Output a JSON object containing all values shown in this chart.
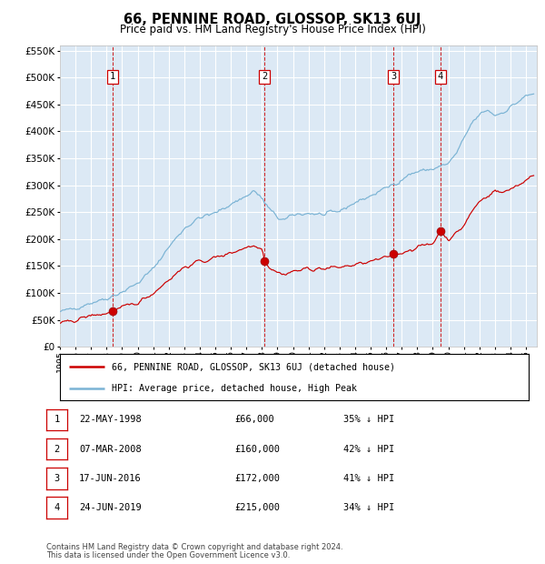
{
  "title": "66, PENNINE ROAD, GLOSSOP, SK13 6UJ",
  "subtitle": "Price paid vs. HM Land Registry's House Price Index (HPI)",
  "legend_line1": "66, PENNINE ROAD, GLOSSOP, SK13 6UJ (detached house)",
  "legend_line2": "HPI: Average price, detached house, High Peak",
  "footer_line1": "Contains HM Land Registry data © Crown copyright and database right 2024.",
  "footer_line2": "This data is licensed under the Open Government Licence v3.0.",
  "hpi_color": "#7ab3d4",
  "price_color": "#cc0000",
  "bg_color": "#dce9f5",
  "sale_points": [
    {
      "label": "1",
      "date": "22-MAY-1998",
      "price": 66000,
      "pct": "35%",
      "year_x": 1998.38
    },
    {
      "label": "2",
      "date": "07-MAR-2008",
      "price": 160000,
      "pct": "42%",
      "year_x": 2008.18
    },
    {
      "label": "3",
      "date": "17-JUN-2016",
      "price": 172000,
      "pct": "41%",
      "year_x": 2016.46
    },
    {
      "label": "4",
      "date": "24-JUN-2019",
      "price": 215000,
      "pct": "34%",
      "year_x": 2019.48
    }
  ],
  "ylim": [
    0,
    560000
  ],
  "yticks": [
    0,
    50000,
    100000,
    150000,
    200000,
    250000,
    300000,
    350000,
    400000,
    450000,
    500000,
    550000
  ],
  "xlim_start": 1995.0,
  "xlim_end": 2025.7,
  "hpi_anchors": [
    [
      1995.0,
      65000
    ],
    [
      1996.0,
      72000
    ],
    [
      1997.0,
      82000
    ],
    [
      1998.0,
      90000
    ],
    [
      1999.0,
      102000
    ],
    [
      2000.0,
      118000
    ],
    [
      2001.0,
      145000
    ],
    [
      2002.0,
      185000
    ],
    [
      2003.0,
      220000
    ],
    [
      2004.0,
      240000
    ],
    [
      2005.0,
      248000
    ],
    [
      2006.0,
      265000
    ],
    [
      2007.0,
      280000
    ],
    [
      2007.5,
      290000
    ],
    [
      2008.0,
      275000
    ],
    [
      2008.5,
      255000
    ],
    [
      2009.0,
      240000
    ],
    [
      2009.5,
      235000
    ],
    [
      2010.0,
      245000
    ],
    [
      2011.0,
      248000
    ],
    [
      2012.0,
      245000
    ],
    [
      2013.0,
      252000
    ],
    [
      2014.0,
      268000
    ],
    [
      2015.0,
      280000
    ],
    [
      2016.0,
      295000
    ],
    [
      2017.0,
      310000
    ],
    [
      2017.5,
      320000
    ],
    [
      2018.0,
      325000
    ],
    [
      2018.5,
      328000
    ],
    [
      2019.0,
      330000
    ],
    [
      2019.5,
      335000
    ],
    [
      2020.0,
      340000
    ],
    [
      2020.5,
      358000
    ],
    [
      2021.0,
      385000
    ],
    [
      2021.5,
      415000
    ],
    [
      2022.0,
      430000
    ],
    [
      2022.5,
      440000
    ],
    [
      2023.0,
      430000
    ],
    [
      2023.5,
      435000
    ],
    [
      2024.0,
      445000
    ],
    [
      2024.5,
      455000
    ],
    [
      2025.0,
      465000
    ],
    [
      2025.5,
      470000
    ]
  ],
  "price_anchors": [
    [
      1995.0,
      42000
    ],
    [
      1996.0,
      50000
    ],
    [
      1997.0,
      58000
    ],
    [
      1998.0,
      62000
    ],
    [
      1998.38,
      66000
    ],
    [
      1999.0,
      72000
    ],
    [
      2000.0,
      82000
    ],
    [
      2001.0,
      100000
    ],
    [
      2002.0,
      125000
    ],
    [
      2003.0,
      148000
    ],
    [
      2004.0,
      158000
    ],
    [
      2005.0,
      165000
    ],
    [
      2006.0,
      175000
    ],
    [
      2007.0,
      185000
    ],
    [
      2007.5,
      188000
    ],
    [
      2008.0,
      185000
    ],
    [
      2008.18,
      160000
    ],
    [
      2008.5,
      148000
    ],
    [
      2009.0,
      138000
    ],
    [
      2009.5,
      135000
    ],
    [
      2010.0,
      140000
    ],
    [
      2011.0,
      145000
    ],
    [
      2012.0,
      145000
    ],
    [
      2013.0,
      148000
    ],
    [
      2014.0,
      152000
    ],
    [
      2015.0,
      158000
    ],
    [
      2016.0,
      165000
    ],
    [
      2016.46,
      172000
    ],
    [
      2017.0,
      175000
    ],
    [
      2017.5,
      180000
    ],
    [
      2018.0,
      185000
    ],
    [
      2018.5,
      188000
    ],
    [
      2019.0,
      192000
    ],
    [
      2019.48,
      215000
    ],
    [
      2020.0,
      200000
    ],
    [
      2020.5,
      210000
    ],
    [
      2021.0,
      225000
    ],
    [
      2021.5,
      250000
    ],
    [
      2022.0,
      270000
    ],
    [
      2022.5,
      280000
    ],
    [
      2023.0,
      290000
    ],
    [
      2023.5,
      285000
    ],
    [
      2024.0,
      295000
    ],
    [
      2024.5,
      300000
    ],
    [
      2025.0,
      310000
    ],
    [
      2025.5,
      315000
    ]
  ]
}
